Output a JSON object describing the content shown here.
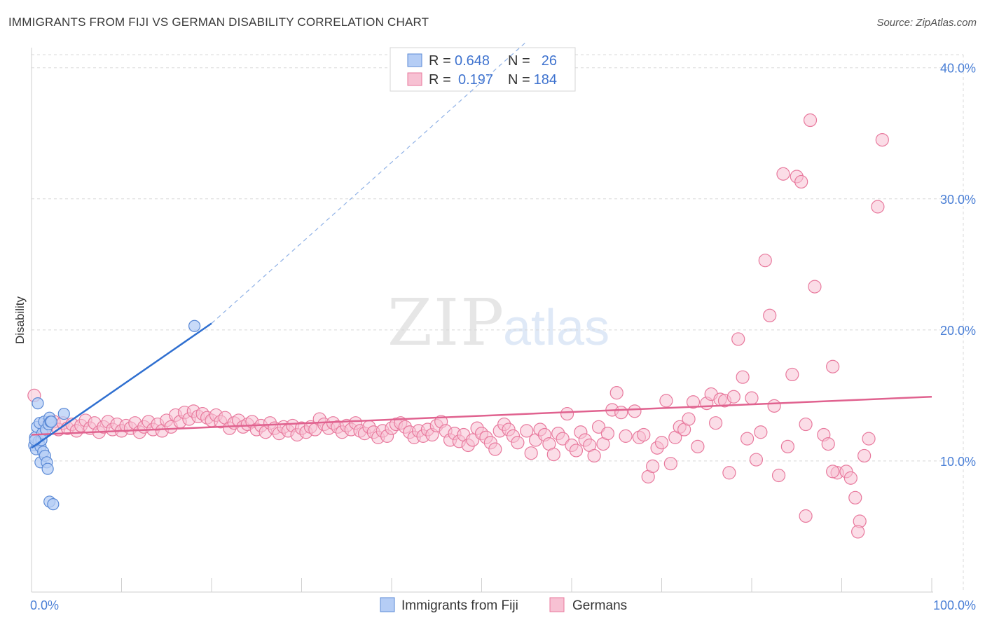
{
  "header": {
    "title": "IMMIGRANTS FROM FIJI VS GERMAN DISABILITY CORRELATION CHART",
    "source": "Source: ZipAtlas.com"
  },
  "watermark": {
    "zip": "ZIP",
    "atlas": "atlas"
  },
  "legend": {
    "row1": {
      "r_label": "R =",
      "r_value": "0.648",
      "n_label": "N =",
      "n_value": "26"
    },
    "row2": {
      "r_label": "R =",
      "r_value": "0.197",
      "n_label": "N =",
      "n_value": "184"
    }
  },
  "colors": {
    "fiji_fill": "#b5cdf5",
    "fiji_stroke": "#5b8ad6",
    "fiji_line": "#2f6fd0",
    "german_fill": "#f7c1d3",
    "german_stroke": "#e8799d",
    "german_line": "#e0628f",
    "tick": "#4a7fd6",
    "grid": "#d8d8d8"
  },
  "chart_data": {
    "type": "scatter",
    "title": "IMMIGRANTS FROM FIJI VS GERMAN DISABILITY CORRELATION CHART",
    "xlabel": "",
    "ylabel": "Disability",
    "xlim": [
      0,
      100
    ],
    "ylim": [
      0,
      41
    ],
    "x_tick_labels": [
      "0.0%",
      "100.0%"
    ],
    "y_ticks": [
      10,
      20,
      30,
      40
    ],
    "y_tick_labels": [
      "10.0%",
      "20.0%",
      "30.0%",
      "40.0%"
    ],
    "grid": true,
    "legend_position": "top-center",
    "series": [
      {
        "name": "Immigrants from Fiji",
        "r": 0.648,
        "n": 26,
        "trend": {
          "x0": 0,
          "y0": 11.0,
          "x1": 20,
          "y1": 20.5,
          "dash_to_x": 55,
          "dash_to_y": 42.0
        },
        "points": [
          [
            0.3,
            11.2
          ],
          [
            0.4,
            11.8
          ],
          [
            0.5,
            10.9
          ],
          [
            0.6,
            12.6
          ],
          [
            0.7,
            14.4
          ],
          [
            0.8,
            11.5
          ],
          [
            0.9,
            12.9
          ],
          [
            1.0,
            11.1
          ],
          [
            1.0,
            9.9
          ],
          [
            1.1,
            11.6
          ],
          [
            1.2,
            12.1
          ],
          [
            1.3,
            10.7
          ],
          [
            1.4,
            13.0
          ],
          [
            1.5,
            10.4
          ],
          [
            1.6,
            12.4
          ],
          [
            1.7,
            9.9
          ],
          [
            1.8,
            9.4
          ],
          [
            1.9,
            12.8
          ],
          [
            2.0,
            13.3
          ],
          [
            2.1,
            13.0
          ],
          [
            2.2,
            13.0
          ],
          [
            2.0,
            6.9
          ],
          [
            2.4,
            6.7
          ],
          [
            3.6,
            13.6
          ],
          [
            18.1,
            20.3
          ],
          [
            0.4,
            11.6
          ]
        ]
      },
      {
        "name": "Germans",
        "r": 0.197,
        "n": 184,
        "trend": {
          "x0": 0,
          "y0": 12.0,
          "x1": 100,
          "y1": 14.9
        },
        "points": [
          [
            0.3,
            15.0
          ],
          [
            1.5,
            12.6
          ],
          [
            2.5,
            13.0
          ],
          [
            3.0,
            12.4
          ],
          [
            3.5,
            12.9
          ],
          [
            4.0,
            12.5
          ],
          [
            4.5,
            12.8
          ],
          [
            5.0,
            12.3
          ],
          [
            5.5,
            12.7
          ],
          [
            6.0,
            13.1
          ],
          [
            6.5,
            12.5
          ],
          [
            7.0,
            12.9
          ],
          [
            7.5,
            12.2
          ],
          [
            8.0,
            12.6
          ],
          [
            8.5,
            13.0
          ],
          [
            9.0,
            12.4
          ],
          [
            9.5,
            12.8
          ],
          [
            10.0,
            12.3
          ],
          [
            10.5,
            12.7
          ],
          [
            11.0,
            12.5
          ],
          [
            11.5,
            12.9
          ],
          [
            12.0,
            12.2
          ],
          [
            12.5,
            12.6
          ],
          [
            13.0,
            13.0
          ],
          [
            13.5,
            12.4
          ],
          [
            14.0,
            12.8
          ],
          [
            14.5,
            12.3
          ],
          [
            15.0,
            13.1
          ],
          [
            15.5,
            12.6
          ],
          [
            16.0,
            13.5
          ],
          [
            16.5,
            13.0
          ],
          [
            17.0,
            13.7
          ],
          [
            17.5,
            13.2
          ],
          [
            18.0,
            13.8
          ],
          [
            18.5,
            13.4
          ],
          [
            19.0,
            13.6
          ],
          [
            19.5,
            13.3
          ],
          [
            20.0,
            13.1
          ],
          [
            20.5,
            13.5
          ],
          [
            21.0,
            13.0
          ],
          [
            21.5,
            13.3
          ],
          [
            22.0,
            12.5
          ],
          [
            22.5,
            12.9
          ],
          [
            23.0,
            13.1
          ],
          [
            23.5,
            12.6
          ],
          [
            24.0,
            12.8
          ],
          [
            24.5,
            13.0
          ],
          [
            25.0,
            12.4
          ],
          [
            25.5,
            12.7
          ],
          [
            26.0,
            12.2
          ],
          [
            26.5,
            12.9
          ],
          [
            27.0,
            12.5
          ],
          [
            27.5,
            12.1
          ],
          [
            28.0,
            12.6
          ],
          [
            28.5,
            12.3
          ],
          [
            29.0,
            12.7
          ],
          [
            29.5,
            12.0
          ],
          [
            30.0,
            12.5
          ],
          [
            30.5,
            12.2
          ],
          [
            31.0,
            12.6
          ],
          [
            31.5,
            12.4
          ],
          [
            32.0,
            13.2
          ],
          [
            32.5,
            12.8
          ],
          [
            33.0,
            12.5
          ],
          [
            33.5,
            12.9
          ],
          [
            34.0,
            12.6
          ],
          [
            34.5,
            12.2
          ],
          [
            35.0,
            12.7
          ],
          [
            35.5,
            12.4
          ],
          [
            36.0,
            12.9
          ],
          [
            36.5,
            12.3
          ],
          [
            37.0,
            12.1
          ],
          [
            37.5,
            12.6
          ],
          [
            38.0,
            12.2
          ],
          [
            38.5,
            11.8
          ],
          [
            39.0,
            12.3
          ],
          [
            39.5,
            11.9
          ],
          [
            40.0,
            12.5
          ],
          [
            40.5,
            12.8
          ],
          [
            41.0,
            12.9
          ],
          [
            41.5,
            12.6
          ],
          [
            42.0,
            12.2
          ],
          [
            42.5,
            11.8
          ],
          [
            43.0,
            12.3
          ],
          [
            43.5,
            11.9
          ],
          [
            44.0,
            12.4
          ],
          [
            44.5,
            12.0
          ],
          [
            45.0,
            12.7
          ],
          [
            45.5,
            13.0
          ],
          [
            46.0,
            12.3
          ],
          [
            46.5,
            11.6
          ],
          [
            47.0,
            12.1
          ],
          [
            47.5,
            11.5
          ],
          [
            48.0,
            12.0
          ],
          [
            48.5,
            11.2
          ],
          [
            49.0,
            11.6
          ],
          [
            49.5,
            12.5
          ],
          [
            50.0,
            12.1
          ],
          [
            50.5,
            11.8
          ],
          [
            51.0,
            11.4
          ],
          [
            51.5,
            10.9
          ],
          [
            52.0,
            12.3
          ],
          [
            52.5,
            12.8
          ],
          [
            53.0,
            12.4
          ],
          [
            53.5,
            11.9
          ],
          [
            54.0,
            11.4
          ],
          [
            55.0,
            12.3
          ],
          [
            55.5,
            10.6
          ],
          [
            56.0,
            11.6
          ],
          [
            56.5,
            12.4
          ],
          [
            57.0,
            12.0
          ],
          [
            57.5,
            11.3
          ],
          [
            58.0,
            10.5
          ],
          [
            58.5,
            12.1
          ],
          [
            59.0,
            11.7
          ],
          [
            59.5,
            13.6
          ],
          [
            60.0,
            11.2
          ],
          [
            60.5,
            10.8
          ],
          [
            61.0,
            12.2
          ],
          [
            61.5,
            11.6
          ],
          [
            62.0,
            11.2
          ],
          [
            62.5,
            10.4
          ],
          [
            63.0,
            12.6
          ],
          [
            63.5,
            11.3
          ],
          [
            64.0,
            12.1
          ],
          [
            64.5,
            13.9
          ],
          [
            65.0,
            15.2
          ],
          [
            65.5,
            13.7
          ],
          [
            66.0,
            11.9
          ],
          [
            67.0,
            13.8
          ],
          [
            67.5,
            11.8
          ],
          [
            68.0,
            12.0
          ],
          [
            68.5,
            8.8
          ],
          [
            69.0,
            9.6
          ],
          [
            69.5,
            11.0
          ],
          [
            70.0,
            11.4
          ],
          [
            70.5,
            14.6
          ],
          [
            71.0,
            9.8
          ],
          [
            71.5,
            11.8
          ],
          [
            72.0,
            12.6
          ],
          [
            72.5,
            12.4
          ],
          [
            73.0,
            13.2
          ],
          [
            73.5,
            14.5
          ],
          [
            74.0,
            11.1
          ],
          [
            75.0,
            14.4
          ],
          [
            75.5,
            15.1
          ],
          [
            76.0,
            12.9
          ],
          [
            76.5,
            14.7
          ],
          [
            77.0,
            14.6
          ],
          [
            77.5,
            9.1
          ],
          [
            78.0,
            14.9
          ],
          [
            78.5,
            19.3
          ],
          [
            79.0,
            16.4
          ],
          [
            79.5,
            11.7
          ],
          [
            80.0,
            14.8
          ],
          [
            80.5,
            10.1
          ],
          [
            81.0,
            12.2
          ],
          [
            81.5,
            25.3
          ],
          [
            82.0,
            21.1
          ],
          [
            82.5,
            14.2
          ],
          [
            83.0,
            8.9
          ],
          [
            83.5,
            31.9
          ],
          [
            84.0,
            11.1
          ],
          [
            84.5,
            16.6
          ],
          [
            85.0,
            31.7
          ],
          [
            85.5,
            31.3
          ],
          [
            86.0,
            5.8
          ],
          [
            86.5,
            36.0
          ],
          [
            87.0,
            23.3
          ],
          [
            88.0,
            12.0
          ],
          [
            88.5,
            11.3
          ],
          [
            89.0,
            17.2
          ],
          [
            89.5,
            9.1
          ],
          [
            90.5,
            9.2
          ],
          [
            91.0,
            8.7
          ],
          [
            91.5,
            7.2
          ],
          [
            92.0,
            5.4
          ],
          [
            91.8,
            4.6
          ],
          [
            93.0,
            11.7
          ],
          [
            94.0,
            29.4
          ],
          [
            94.5,
            34.5
          ],
          [
            86.0,
            12.8
          ],
          [
            89.0,
            9.2
          ],
          [
            92.5,
            10.4
          ]
        ]
      }
    ]
  }
}
